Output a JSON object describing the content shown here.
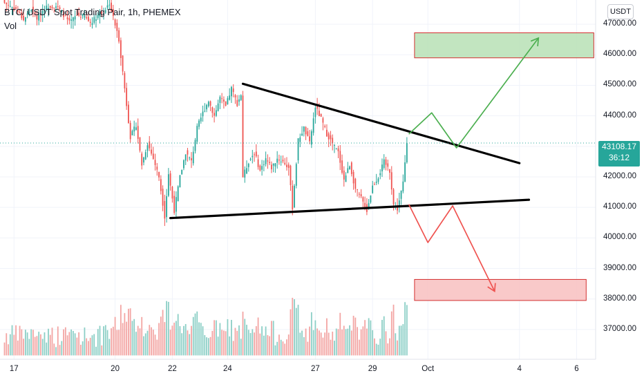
{
  "header": {
    "title": "BTC/ USDT Spot Trading Pair, 1h, PHEMEX",
    "vol_label": "Vol",
    "currency_button": "USDT"
  },
  "last_price": {
    "value": "43108.17",
    "countdown": "36:12"
  },
  "colors": {
    "up": "#26a69a",
    "down": "#ef5350",
    "trend": "#000000",
    "bull_arrow": "#4caf50",
    "bear_arrow": "#ef5350",
    "bull_zone_fill": "#b7e1b5",
    "bear_zone_fill": "#f8c0c0"
  },
  "chart_data": {
    "type": "candlestick",
    "title": "BTC/ USDT Spot Trading Pair, 1h, PHEMEX",
    "xlabel": "",
    "ylabel": "",
    "ylim": [
      36250,
      47750
    ],
    "y_ticks": [
      "47000.00",
      "46000.00",
      "45000.00",
      "44000.00",
      "43000.00",
      "42000.00",
      "41000.00",
      "40000.00",
      "39000.00",
      "38000.00",
      "37000.00"
    ],
    "x_ticks": [
      "17",
      "20",
      "22",
      "24",
      "27",
      "29",
      "Oct",
      "4",
      "6"
    ],
    "last_price": 43108.17,
    "price_path": [
      [
        0,
        47700
      ],
      [
        6,
        47500
      ],
      [
        10,
        47150
      ],
      [
        14,
        47500
      ],
      [
        17,
        47200
      ],
      [
        20,
        47450
      ],
      [
        23,
        47600
      ],
      [
        27,
        47600
      ],
      [
        30,
        47400
      ],
      [
        34,
        47050
      ],
      [
        38,
        47300
      ],
      [
        42,
        47250
      ],
      [
        45,
        47050
      ],
      [
        49,
        47300
      ],
      [
        52,
        47400
      ],
      [
        55,
        47700
      ],
      [
        60,
        46500
      ],
      [
        63,
        44900
      ],
      [
        66,
        43300
      ],
      [
        69,
        43700
      ],
      [
        72,
        42400
      ],
      [
        75,
        43100
      ],
      [
        78,
        42600
      ],
      [
        81,
        42000
      ],
      [
        84,
        40700
      ],
      [
        86,
        42100
      ],
      [
        89,
        40900
      ],
      [
        92,
        42000
      ],
      [
        95,
        42800
      ],
      [
        98,
        42500
      ],
      [
        101,
        43600
      ],
      [
        104,
        44100
      ],
      [
        107,
        44500
      ],
      [
        110,
        44000
      ],
      [
        113,
        44600
      ],
      [
        116,
        44300
      ],
      [
        119,
        44900
      ],
      [
        122,
        44400
      ],
      [
        124,
        44700
      ],
      [
        125,
        42000
      ],
      [
        128,
        42500
      ],
      [
        131,
        42800
      ],
      [
        134,
        42200
      ],
      [
        137,
        42600
      ],
      [
        140,
        42300
      ],
      [
        143,
        42600
      ],
      [
        146,
        42500
      ],
      [
        149,
        42300
      ],
      [
        151,
        41000
      ],
      [
        154,
        43200
      ],
      [
        157,
        43600
      ],
      [
        160,
        43100
      ],
      [
        163,
        44300
      ],
      [
        166,
        43900
      ],
      [
        169,
        43400
      ],
      [
        172,
        43100
      ],
      [
        175,
        42800
      ],
      [
        178,
        41900
      ],
      [
        181,
        42400
      ],
      [
        184,
        41600
      ],
      [
        187,
        41300
      ],
      [
        190,
        40900
      ],
      [
        193,
        41700
      ],
      [
        196,
        42000
      ],
      [
        199,
        42500
      ],
      [
        202,
        42200
      ],
      [
        204,
        41100
      ],
      [
        206,
        40950
      ],
      [
        209,
        41800
      ],
      [
        211,
        43108
      ]
    ],
    "volume_range": [
      36150,
      38200
    ],
    "trendlines": [
      {
        "name": "upper",
        "from": [
          125,
          45050
        ],
        "to": [
          270,
          42450
        ]
      },
      {
        "name": "lower",
        "from": [
          87,
          40650
        ],
        "to": [
          275,
          41250
        ]
      }
    ],
    "bullish_path": [
      [
        212,
        43400
      ],
      [
        224,
        44100
      ],
      [
        237,
        42950
      ],
      [
        280,
        46550
      ]
    ],
    "bearish_path": [
      [
        212,
        41100
      ],
      [
        222,
        39850
      ],
      [
        235,
        41050
      ],
      [
        257,
        38250
      ]
    ],
    "zones": [
      {
        "name": "target-up",
        "x_range": [
          215,
          309
        ],
        "y_range": [
          45900,
          46720
        ]
      },
      {
        "name": "target-down",
        "x_range": [
          215,
          305
        ],
        "y_range": [
          37950,
          38640
        ]
      }
    ],
    "x_tick_bars": [
      [
        5,
        "17"
      ],
      [
        58,
        "20"
      ],
      [
        88,
        "22"
      ],
      [
        117,
        "24"
      ],
      [
        163,
        "27"
      ],
      [
        193,
        "29"
      ],
      [
        222,
        "Oct"
      ],
      [
        270,
        "4"
      ],
      [
        300,
        "6"
      ]
    ]
  }
}
